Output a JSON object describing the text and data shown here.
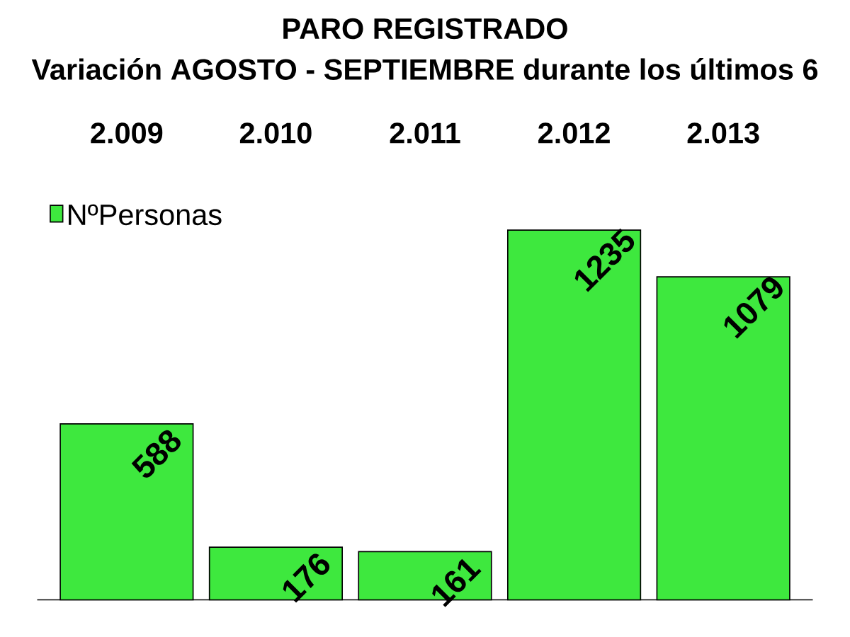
{
  "chart_data": {
    "type": "bar",
    "title": "PARO REGISTRADO",
    "subtitle": "Variación  AGOSTO - SEPTIEMBRE   durante los últimos 6",
    "categories": [
      "2.009",
      "2.010",
      "2.011",
      "2.012",
      "2.013"
    ],
    "series": [
      {
        "name": "NºPersonas",
        "color": "#3ee83e",
        "values": [
          588,
          176,
          161,
          1235,
          1079
        ]
      }
    ],
    "legend": "top left",
    "data_labels": true
  }
}
